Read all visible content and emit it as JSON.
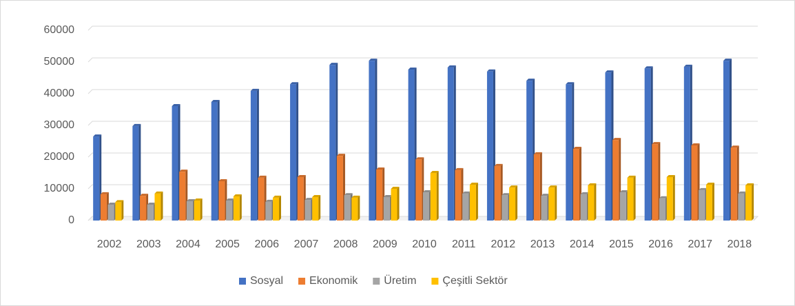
{
  "chart_data": {
    "type": "bar",
    "categories": [
      "2002",
      "2003",
      "2004",
      "2005",
      "2006",
      "2007",
      "2008",
      "2009",
      "2010",
      "2011",
      "2012",
      "2013",
      "2014",
      "2015",
      "2016",
      "2017",
      "2018"
    ],
    "series": [
      {
        "name": "Sosyal",
        "color": "#4472c4",
        "values": [
          26500,
          29800,
          36100,
          37400,
          40900,
          43000,
          49100,
          50400,
          47600,
          48300,
          47000,
          44100,
          43000,
          46700,
          48000,
          48500,
          50400
        ]
      },
      {
        "name": "Ekonomik",
        "color": "#ed7d31",
        "values": [
          8300,
          7800,
          15400,
          12400,
          13500,
          13700,
          20400,
          16100,
          19300,
          15900,
          17200,
          20900,
          22600,
          25400,
          24100,
          23700,
          23000
        ]
      },
      {
        "name": "Üretim",
        "color": "#a5a5a5",
        "values": [
          5000,
          5000,
          6100,
          6300,
          5900,
          6500,
          8000,
          7400,
          8900,
          8500,
          8000,
          7800,
          8300,
          8900,
          7000,
          9600,
          8500
        ]
      },
      {
        "name": "Çeşitli Sektör",
        "color": "#ffc000",
        "values": [
          5800,
          8500,
          6300,
          7600,
          7200,
          7400,
          7200,
          10000,
          15000,
          11300,
          10400,
          10400,
          11100,
          13500,
          13700,
          11300,
          11100
        ]
      }
    ],
    "ylim": [
      0,
      60000
    ],
    "yticks": [
      0,
      10000,
      20000,
      30000,
      40000,
      50000,
      60000
    ],
    "grid": true,
    "legend": "bottom"
  }
}
